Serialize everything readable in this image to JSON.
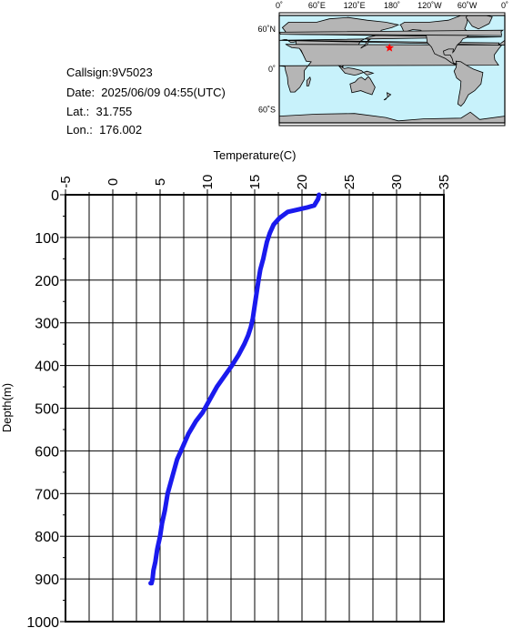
{
  "info": {
    "callsign": "Callsign:9V5023",
    "date": "Date:  2025/06/09 04:55(UTC)",
    "lat": "Lat.:  31.755",
    "lon": "Lon.:  176.002"
  },
  "map": {
    "lon_labels": [
      "0˚",
      "60˚E",
      "120˚E",
      "180˚",
      "120˚W",
      "60˚W",
      "0˚"
    ],
    "lat_labels": [
      "60˚N",
      "0˚",
      "60˚S"
    ],
    "ocean_color": "#c8f2fb",
    "land_color": "#b5b5b5",
    "marker": {
      "lat": 31.755,
      "lon": 176.002,
      "color": "#ff0000",
      "symbol": "star"
    }
  },
  "chart_data": {
    "type": "line",
    "xlabel": "Temperature(C)",
    "ylabel": "Depth(m)",
    "xlim": [
      -5,
      35
    ],
    "ylim": [
      0,
      1000
    ],
    "y_inverted": true,
    "x_ticks": [
      "-5",
      "0",
      "5",
      "10",
      "15",
      "20",
      "25",
      "30",
      "35"
    ],
    "y_ticks": [
      "0",
      "100",
      "200",
      "300",
      "400",
      "500",
      "600",
      "700",
      "800",
      "900",
      "1000"
    ],
    "grid": true,
    "line_color": "#1a1aee",
    "series": [
      {
        "x": [
          21.8,
          21.7,
          21.3,
          20.5,
          19.5,
          18.5,
          17.6,
          17.0,
          16.6,
          16.3,
          16.1,
          15.9,
          15.6,
          15.4,
          15.2,
          15.0,
          14.8,
          14.6,
          14.3,
          13.9,
          13.3,
          12.6,
          11.8,
          11.0,
          10.5,
          10.0,
          9.5,
          8.8,
          8.0,
          7.4,
          6.8,
          6.3,
          5.8,
          5.5,
          5.2,
          5.0,
          4.7,
          4.5,
          4.3,
          4.2,
          4.1,
          4.0
        ],
        "y": [
          0,
          10,
          25,
          30,
          35,
          40,
          55,
          70,
          90,
          110,
          130,
          150,
          175,
          200,
          230,
          260,
          290,
          310,
          330,
          350,
          375,
          400,
          425,
          450,
          470,
          490,
          510,
          530,
          560,
          590,
          620,
          660,
          700,
          740,
          770,
          800,
          830,
          860,
          880,
          900,
          910,
          910
        ]
      }
    ]
  }
}
